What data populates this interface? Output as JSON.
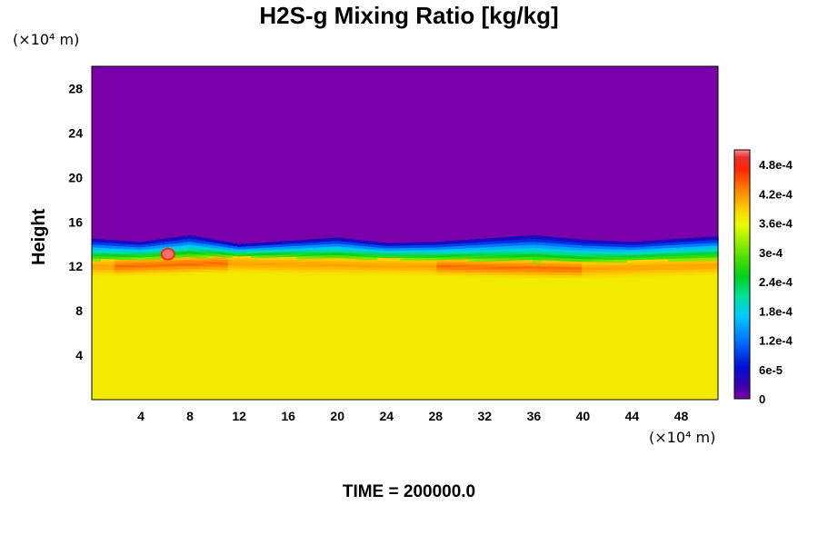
{
  "chart_data": {
    "type": "heatmap",
    "title": "H2S-g Mixing Ratio [kg/kg]",
    "ylabel": "Height",
    "y_unit": "(×10⁴ m)",
    "x_unit": "(×10⁴ m)",
    "time_label": "TIME = 200000.0",
    "xlim": [
      0,
      51
    ],
    "ylim": [
      0,
      30
    ],
    "x_ticks": [
      4,
      8,
      12,
      16,
      20,
      24,
      28,
      32,
      36,
      40,
      44,
      48
    ],
    "y_ticks": [
      4,
      8,
      12,
      16,
      20,
      24,
      28
    ],
    "colorbar": {
      "min": 0,
      "max": 0.00051,
      "tick_values": [
        0,
        6e-05,
        0.00012,
        0.00018,
        0.00024,
        0.0003,
        0.00036,
        0.00042,
        0.00048
      ],
      "tick_labels": [
        "0",
        "6e-5",
        "1.2e-4",
        "1.8e-4",
        "2.4e-4",
        "3e-4",
        "3.6e-4",
        "4.2e-4",
        "4.8e-4"
      ]
    },
    "field": {
      "lower_value": 0.00037,
      "lower_top_height": 11,
      "upper_value": 0,
      "layer_top_height_x": [
        0,
        4,
        8,
        12,
        16,
        20,
        24,
        28,
        32,
        36,
        40,
        44,
        48,
        51
      ],
      "layer_top_height": [
        14.5,
        14.2,
        14.8,
        14.0,
        14.3,
        14.6,
        14.1,
        14.2,
        14.5,
        14.8,
        14.4,
        14.2,
        14.5,
        14.7
      ],
      "enhanced_band_x": [
        1,
        10,
        30,
        40,
        51
      ],
      "enhanced_band_height": [
        12.0,
        12.3,
        12.0,
        11.8,
        12.1
      ]
    }
  }
}
